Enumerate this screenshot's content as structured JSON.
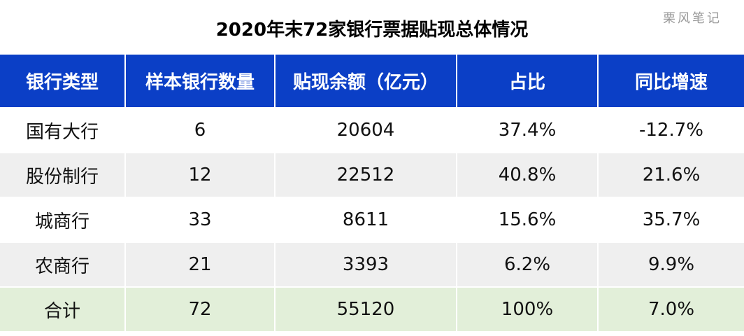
{
  "header": {
    "title": "2020年末72家银行票据贴现总体情况",
    "watermark": "栗风笔记"
  },
  "table": {
    "columns": [
      "银行类型",
      "样本银行数量",
      "贴现余额（亿元）",
      "占比",
      "同比增速"
    ],
    "rows": [
      [
        "国有大行",
        "6",
        "20604",
        "37.4%",
        "-12.7%"
      ],
      [
        "股份制行",
        "12",
        "22512",
        "40.8%",
        "21.6%"
      ],
      [
        "城商行",
        "33",
        "8611",
        "15.6%",
        "35.7%"
      ],
      [
        "农商行",
        "21",
        "3393",
        "6.2%",
        "9.9%"
      ],
      [
        "合计",
        "72",
        "55120",
        "100%",
        "7.0%"
      ]
    ]
  }
}
